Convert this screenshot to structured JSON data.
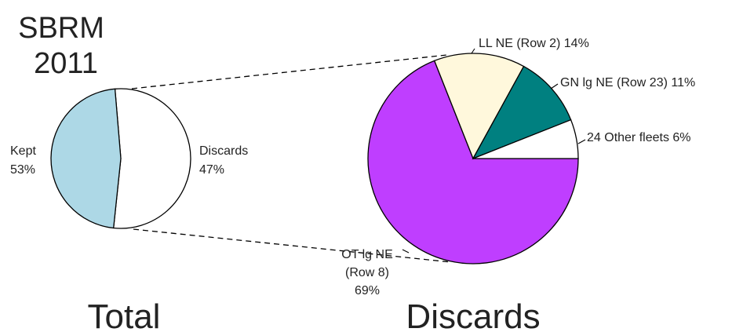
{
  "title_lines": [
    "SBRM",
    "2011"
  ],
  "chart_data": [
    {
      "type": "pie",
      "title": "Total",
      "slices": [
        {
          "label": "Kept",
          "value": 53,
          "percent_text": "53%",
          "color": "#ffffff"
        },
        {
          "label": "Discards",
          "value": 47,
          "percent_text": "47%",
          "color": "#add8e6"
        }
      ]
    },
    {
      "type": "pie",
      "title": "Discards",
      "slices": [
        {
          "label": "OT lg NE (Row 8) 69%",
          "label_lines": [
            "OT lg NE",
            "(Row 8)",
            "69%"
          ],
          "value": 69,
          "color": "#bf3eff"
        },
        {
          "label": "LL NE (Row 2) 14%",
          "label_lines": [
            "LL NE (Row 2) 14%"
          ],
          "value": 14,
          "color": "#fff8dc"
        },
        {
          "label": "GN lg NE (Row 23) 11%",
          "label_lines": [
            "GN lg NE (Row 23) 11%"
          ],
          "value": 11,
          "color": "#008080"
        },
        {
          "label": "24 Other fleets 6%",
          "label_lines": [
            "24 Other fleets 6%"
          ],
          "value": 6,
          "color": "#ffffff"
        }
      ]
    }
  ],
  "colors": {
    "outline": "#000000",
    "text": "#222222"
  }
}
